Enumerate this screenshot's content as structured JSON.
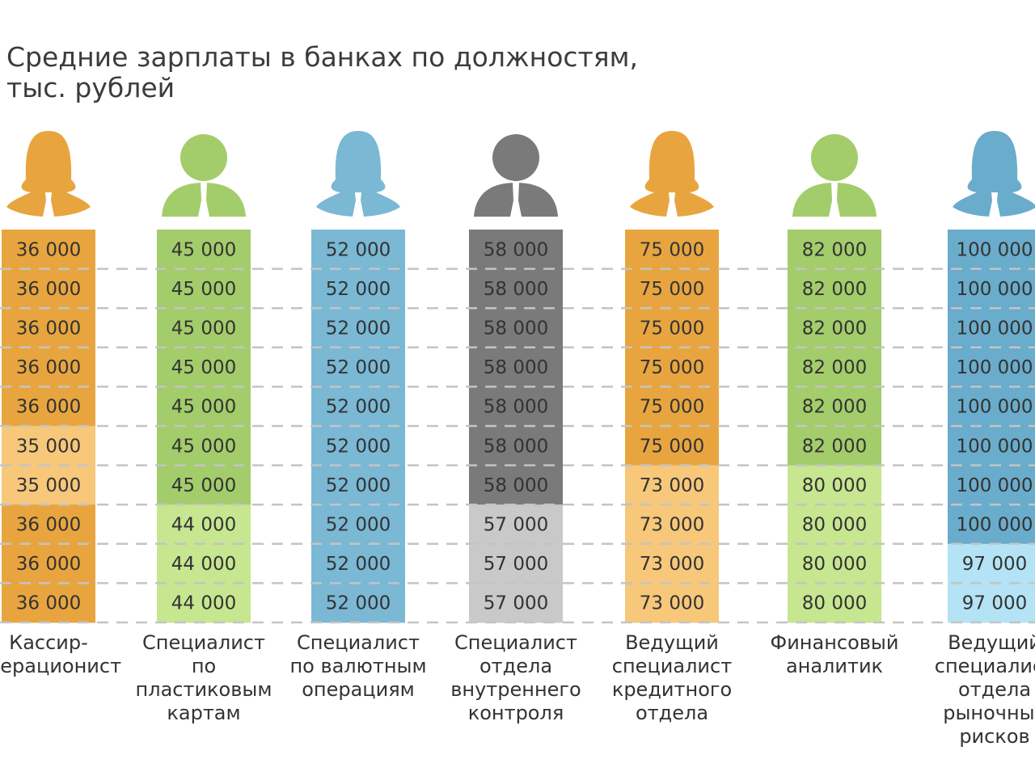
{
  "chart_data": {
    "type": "table",
    "title": [
      "Средние зарплаты в банках по должностям,",
      "тыс. рублей"
    ],
    "grid": true,
    "colors": {
      "orange": [
        "#e8a53f",
        "#f7c77a"
      ],
      "green": [
        "#a3cc6b",
        "#c6e690"
      ],
      "blue": [
        "#7ab8d4",
        "#7ab8d4"
      ],
      "gray": [
        "#7a7a7a",
        "#c9c9c9"
      ],
      "lightblue": [
        "#6aaccb",
        "#b3e3f5"
      ]
    },
    "columns": [
      {
        "label": [
          "Кассир-",
          "операционист"
        ],
        "icon": "female-person-icon",
        "color": "orange",
        "values": [
          "36 000",
          "36 000",
          "36 000",
          "36 000",
          "36 000",
          "35 000",
          "35 000",
          "36 000",
          "36 000",
          "36 000"
        ]
      },
      {
        "label": [
          "Специалист",
          "по",
          "пластиковым",
          "картам"
        ],
        "icon": "male-person-icon",
        "color": "green",
        "values": [
          "45 000",
          "45 000",
          "45 000",
          "45 000",
          "45 000",
          "45 000",
          "45 000",
          "44 000",
          "44 000",
          "44 000"
        ]
      },
      {
        "label": [
          "Специалист",
          "по валютным",
          "операциям"
        ],
        "icon": "female-person-icon",
        "color": "blue",
        "values": [
          "52 000",
          "52 000",
          "52 000",
          "52 000",
          "52 000",
          "52 000",
          "52 000",
          "52 000",
          "52 000",
          "52 000"
        ]
      },
      {
        "label": [
          "Специалист",
          "отдела",
          "внутреннего",
          "контроля"
        ],
        "icon": "male-person-icon",
        "color": "gray",
        "values": [
          "58 000",
          "58 000",
          "58 000",
          "58 000",
          "58 000",
          "58 000",
          "58 000",
          "57 000",
          "57 000",
          "57 000"
        ]
      },
      {
        "label": [
          "Ведущий",
          "специалист",
          "кредитного",
          "отдела"
        ],
        "icon": "female-person-icon",
        "color": "orange",
        "values": [
          "75 000",
          "75 000",
          "75 000",
          "75 000",
          "75 000",
          "75 000",
          "73 000",
          "73 000",
          "73 000",
          "73 000"
        ]
      },
      {
        "label": [
          "Финансовый",
          "аналитик"
        ],
        "icon": "male-person-icon",
        "color": "green",
        "values": [
          "82 000",
          "82 000",
          "82 000",
          "82 000",
          "82 000",
          "82 000",
          "80 000",
          "80 000",
          "80 000",
          "80 000"
        ]
      },
      {
        "label": [
          "Ведущий",
          "специалист",
          "отдела",
          "рыночных",
          "рисков"
        ],
        "icon": "female-person-icon",
        "color": "lightblue",
        "values": [
          "100 000",
          "100 000",
          "100 000",
          "100 000",
          "100 000",
          "100 000",
          "100 000",
          "100 000",
          "97 000",
          "97 000"
        ]
      }
    ]
  }
}
